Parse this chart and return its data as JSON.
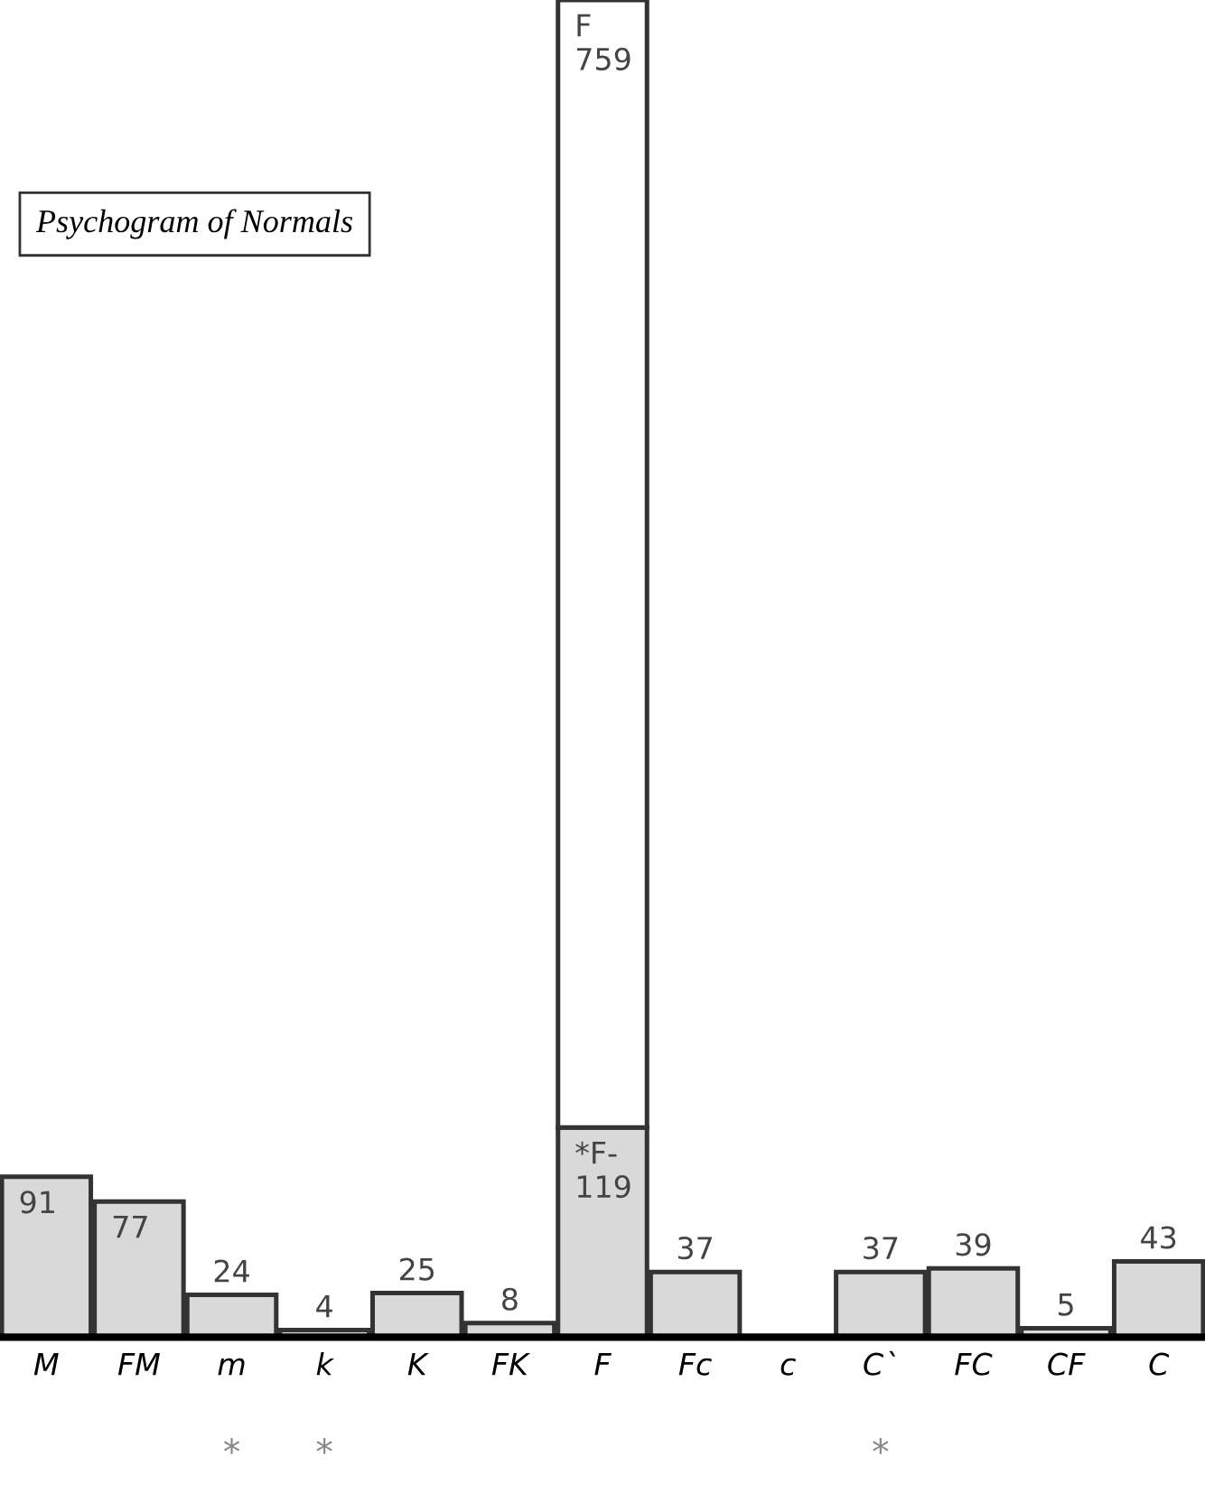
{
  "chart_data": {
    "type": "bar",
    "title": "Psychogram of Normals",
    "stacked": true,
    "categories": [
      "M",
      "FM",
      "m",
      "k",
      "K",
      "FK",
      "F",
      "Fc",
      "c",
      "C`",
      "FC",
      "CF",
      "C"
    ],
    "series": [
      {
        "color": "#d9d9d9",
        "values": [
          91,
          77,
          24,
          4,
          25,
          8,
          119,
          37,
          null,
          37,
          39,
          5,
          43
        ],
        "value_labels": [
          "91",
          "77",
          "24",
          "4",
          "25",
          "8",
          "*F-\n119",
          "37",
          null,
          "37",
          "39",
          "5",
          "43"
        ]
      },
      {
        "color": "#ffffff",
        "values": [
          null,
          null,
          null,
          null,
          null,
          null,
          640,
          null,
          null,
          null,
          null,
          null,
          null
        ],
        "value_labels": [
          null,
          null,
          null,
          null,
          null,
          null,
          "F\n759",
          null,
          null,
          null,
          null,
          null,
          null
        ]
      }
    ],
    "grid": false,
    "legend": false,
    "annotations": [
      "*",
      "*",
      "*"
    ]
  }
}
